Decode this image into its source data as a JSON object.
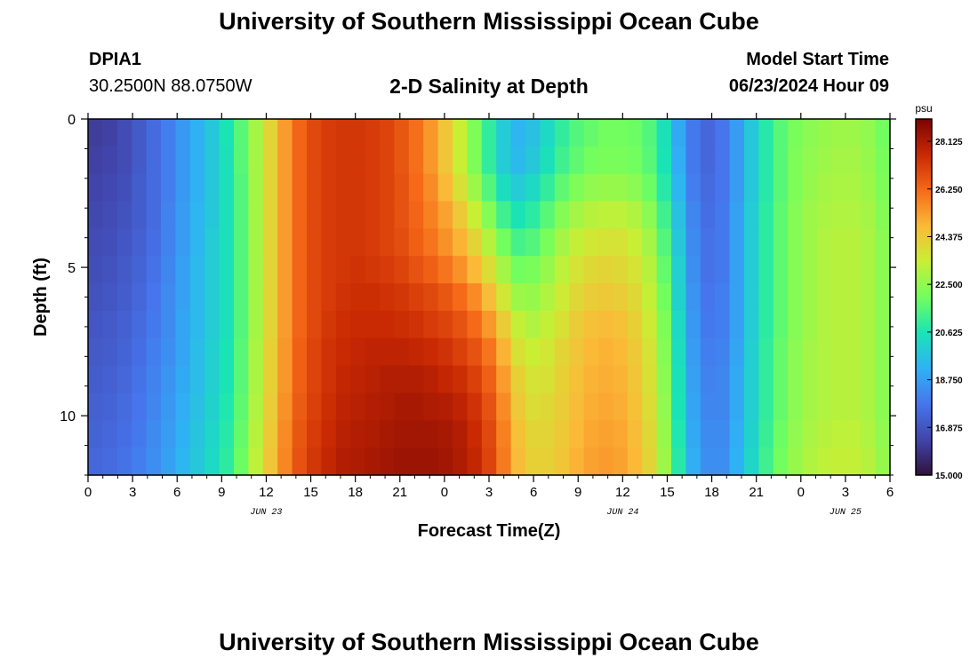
{
  "header": {
    "title": "University of Southern Mississippi Ocean Cube",
    "station_id": "DPIA1",
    "station_coords": "30.2500N  88.0750W",
    "plot_title": "2-D Salinity at Depth",
    "model_start_label": "Model Start Time",
    "model_start_value": "06/23/2024 Hour 09"
  },
  "footer": {
    "title": "University of Southern Mississippi Ocean Cube"
  },
  "chart_data": {
    "type": "heatmap",
    "title": "2-D Salinity at Depth",
    "xlabel": "Forecast Time(Z)",
    "ylabel": "Depth (ft)",
    "x_ticks": [
      0,
      3,
      6,
      9,
      12,
      15,
      18,
      21,
      24,
      27,
      30,
      33,
      36,
      39,
      42,
      45,
      48,
      51,
      54
    ],
    "x_tick_labels": [
      "0",
      "3",
      "6",
      "9",
      "12",
      "15",
      "18",
      "21",
      "0",
      "3",
      "6",
      "9",
      "12",
      "15",
      "18",
      "21",
      "0",
      "3",
      "6"
    ],
    "date_labels": [
      {
        "text": "JUN 23",
        "x": 12
      },
      {
        "text": "JUN 24",
        "x": 36
      },
      {
        "text": "JUN 25",
        "x": 51
      }
    ],
    "xlim": [
      0,
      54
    ],
    "ylim": [
      0,
      12
    ],
    "y_ticks": [
      0,
      5,
      10
    ],
    "y_tick_labels": [
      "0",
      "5",
      "10"
    ],
    "colorbar": {
      "unit": "psu",
      "min": 15.0,
      "max": 29.0,
      "tick_values": [
        15.0,
        16.875,
        18.75,
        20.625,
        22.5,
        24.375,
        26.25,
        28.125
      ],
      "tick_labels": [
        "15.000",
        "16.875",
        "18.750",
        "20.625",
        "22.500",
        "24.375",
        "26.250",
        "28.125"
      ]
    },
    "colors": {
      "stops": [
        "#30123b",
        "#4145ab",
        "#4675ed",
        "#2fb2f4",
        "#1ae4b6",
        "#72fe5e",
        "#c9ef34",
        "#fbb938",
        "#f56918",
        "#c92903",
        "#7a0403"
      ]
    },
    "x_values": [
      0,
      1,
      2,
      3,
      4,
      5,
      6,
      7,
      8,
      9,
      10,
      11,
      12,
      13,
      14,
      15,
      16,
      17,
      18,
      19,
      20,
      21,
      22,
      23,
      24,
      25,
      26,
      27,
      28,
      29,
      30,
      31,
      32,
      33,
      34,
      35,
      36,
      37,
      38,
      39,
      40,
      41,
      42,
      43,
      44,
      45,
      46,
      47,
      48,
      49,
      50,
      51,
      52,
      53,
      54
    ],
    "depth_values": [
      0,
      1,
      2,
      3,
      4,
      5,
      6,
      7,
      8,
      9,
      10,
      11,
      12
    ],
    "salinity_rows": [
      [
        16.2,
        16.3,
        16.6,
        17,
        17.5,
        18,
        18.6,
        19.2,
        19.8,
        20.6,
        21.6,
        22.8,
        24.1,
        25.3,
        26.3,
        26.9,
        27.2,
        27.3,
        27.3,
        27.2,
        27,
        26.6,
        26.1,
        25.4,
        24.5,
        23.4,
        22.2,
        21,
        19.9,
        19.3,
        19.6,
        20.3,
        21,
        21.5,
        21.8,
        22,
        22,
        21.9,
        21.5,
        20.5,
        19,
        17.9,
        17.4,
        17.8,
        18.7,
        19.8,
        20.8,
        21.6,
        22.1,
        22.4,
        22.6,
        22.7,
        22.7,
        22.5,
        22
      ],
      [
        16.3,
        16.4,
        16.6,
        17,
        17.5,
        18,
        18.6,
        19.2,
        19.8,
        20.5,
        21.6,
        22.8,
        24.1,
        25.3,
        26.3,
        26.9,
        27.2,
        27.3,
        27.3,
        27.2,
        27,
        26.6,
        26.1,
        25.4,
        24.5,
        23.4,
        22.2,
        21,
        19.9,
        19.4,
        19.8,
        20.5,
        21.2,
        21.7,
        22,
        22.1,
        22.1,
        22,
        21.6,
        20.6,
        19.1,
        17.9,
        17.4,
        17.8,
        18.7,
        19.8,
        20.8,
        21.6,
        22.2,
        22.5,
        22.7,
        22.8,
        22.8,
        22.6,
        22.1
      ],
      [
        16.4,
        16.5,
        16.7,
        17.1,
        17.5,
        18,
        18.6,
        19.2,
        19.8,
        20.5,
        21.5,
        22.8,
        24.1,
        25.3,
        26.3,
        26.9,
        27.2,
        27.3,
        27.3,
        27.2,
        27,
        26.7,
        26.2,
        25.6,
        24.8,
        23.8,
        22.7,
        21.5,
        20.4,
        19.9,
        20.3,
        21,
        21.7,
        22.2,
        22.5,
        22.6,
        22.6,
        22.4,
        21.9,
        20.8,
        19.3,
        18,
        17.5,
        17.8,
        18.7,
        19.8,
        20.8,
        21.6,
        22.2,
        22.6,
        22.8,
        22.9,
        22.9,
        22.7,
        22.2
      ],
      [
        16.5,
        16.6,
        16.8,
        17.1,
        17.5,
        18.1,
        18.7,
        19.3,
        19.8,
        20.5,
        21.5,
        22.8,
        24.1,
        25.3,
        26.3,
        26.9,
        27.2,
        27.3,
        27.3,
        27.2,
        27,
        26.7,
        26.3,
        25.8,
        25.2,
        24.4,
        23.4,
        22.3,
        21.2,
        20.6,
        20.9,
        21.6,
        22.3,
        22.8,
        23.1,
        23.2,
        23.2,
        23,
        22.4,
        21.2,
        19.6,
        18.2,
        17.6,
        17.9,
        18.8,
        19.9,
        20.9,
        21.7,
        22.3,
        22.7,
        22.9,
        23,
        23,
        22.8,
        22.3
      ],
      [
        16.6,
        16.7,
        16.9,
        17.2,
        17.6,
        18.1,
        18.7,
        19.3,
        19.9,
        20.5,
        21.5,
        22.8,
        24.1,
        25.3,
        26.3,
        26.9,
        27.2,
        27.3,
        27.3,
        27.2,
        27,
        26.8,
        26.4,
        26,
        25.5,
        24.9,
        24.1,
        23.1,
        22,
        21.3,
        21.5,
        22.1,
        22.8,
        23.3,
        23.6,
        23.7,
        23.7,
        23.4,
        22.8,
        21.5,
        19.8,
        18.3,
        17.7,
        17.9,
        18.8,
        19.9,
        20.9,
        21.7,
        22.3,
        22.7,
        23,
        23.1,
        23.1,
        22.9,
        22.4
      ],
      [
        16.7,
        16.8,
        17,
        17.3,
        17.7,
        18.2,
        18.8,
        19.4,
        19.9,
        20.5,
        21.5,
        22.8,
        24.1,
        25.3,
        26.3,
        26.9,
        27.2,
        27.3,
        27.4,
        27.3,
        27.2,
        27,
        26.7,
        26.4,
        26,
        25.5,
        24.8,
        23.9,
        22.8,
        22,
        22.1,
        22.6,
        23.2,
        23.7,
        24,
        24.1,
        24,
        23.7,
        23.1,
        21.8,
        20,
        18.4,
        17.7,
        17.9,
        18.8,
        19.9,
        20.9,
        21.7,
        22.3,
        22.7,
        23,
        23.1,
        23.1,
        22.9,
        22.4
      ],
      [
        16.8,
        16.9,
        17.1,
        17.4,
        17.8,
        18.3,
        18.8,
        19.4,
        19.9,
        20.5,
        21.5,
        22.8,
        24.1,
        25.3,
        26.3,
        26.9,
        27.2,
        27.4,
        27.5,
        27.5,
        27.4,
        27.3,
        27.1,
        26.9,
        26.6,
        26.2,
        25.6,
        24.7,
        23.6,
        22.7,
        22.6,
        23,
        23.5,
        24,
        24.3,
        24.4,
        24.3,
        24,
        23.3,
        22,
        20.1,
        18.5,
        17.8,
        18,
        18.8,
        19.9,
        20.9,
        21.7,
        22.3,
        22.7,
        23,
        23.1,
        23.1,
        22.9,
        22.4
      ],
      [
        16.9,
        17,
        17.2,
        17.5,
        17.9,
        18.3,
        18.9,
        19.4,
        19.9,
        20.5,
        21.5,
        22.8,
        24.1,
        25.3,
        26.3,
        26.9,
        27.3,
        27.5,
        27.6,
        27.6,
        27.6,
        27.5,
        27.4,
        27.2,
        27,
        26.7,
        26.2,
        25.4,
        24.3,
        23.3,
        23,
        23.3,
        23.8,
        24.3,
        24.6,
        24.7,
        24.6,
        24.2,
        23.5,
        22.2,
        20.3,
        18.6,
        17.9,
        18,
        18.8,
        19.9,
        20.9,
        21.7,
        22.3,
        22.7,
        23,
        23.1,
        23.1,
        22.9,
        22.4
      ],
      [
        17,
        17.1,
        17.3,
        17.6,
        18,
        18.4,
        18.9,
        19.5,
        20,
        20.6,
        21.6,
        22.9,
        24.2,
        25.4,
        26.4,
        27,
        27.4,
        27.6,
        27.7,
        27.8,
        27.8,
        27.8,
        27.7,
        27.6,
        27.4,
        27.1,
        26.7,
        26,
        24.9,
        23.8,
        23.4,
        23.6,
        24.1,
        24.5,
        24.8,
        24.9,
        24.8,
        24.4,
        23.7,
        22.3,
        20.4,
        18.7,
        18,
        18.1,
        18.9,
        20,
        21,
        21.8,
        22.4,
        22.8,
        23,
        23.1,
        23.1,
        22.9,
        22.4
      ],
      [
        17.1,
        17.2,
        17.4,
        17.7,
        18.1,
        18.5,
        19,
        19.5,
        20,
        20.6,
        21.6,
        22.9,
        24.2,
        25.4,
        26.4,
        27,
        27.4,
        27.7,
        27.8,
        27.9,
        28,
        28,
        28,
        27.9,
        27.7,
        27.5,
        27.1,
        26.4,
        25.3,
        24.2,
        23.7,
        23.8,
        24.2,
        24.6,
        24.9,
        25,
        24.9,
        24.5,
        23.8,
        22.4,
        20.5,
        18.8,
        18.1,
        18.2,
        19,
        20,
        21,
        21.8,
        22.4,
        22.8,
        23,
        23.1,
        23.1,
        22.9,
        22.4
      ],
      [
        17.2,
        17.3,
        17.5,
        17.8,
        18.2,
        18.6,
        19.1,
        19.6,
        20.1,
        20.7,
        21.7,
        23,
        24.3,
        25.5,
        26.5,
        27.1,
        27.5,
        27.8,
        27.9,
        28,
        28.1,
        28.2,
        28.2,
        28.1,
        28,
        27.8,
        27.4,
        26.7,
        25.6,
        24.4,
        23.9,
        24,
        24.3,
        24.7,
        25,
        25.1,
        25,
        24.6,
        23.9,
        22.5,
        20.6,
        18.9,
        18.2,
        18.2,
        19,
        20,
        21,
        21.8,
        22.4,
        22.8,
        23,
        23.1,
        23.1,
        22.9,
        22.4
      ],
      [
        17.3,
        17.4,
        17.6,
        17.9,
        18.3,
        18.7,
        19.2,
        19.7,
        20.2,
        20.8,
        21.8,
        23.1,
        24.4,
        25.6,
        26.6,
        27.2,
        27.6,
        27.9,
        28,
        28.1,
        28.2,
        28.3,
        28.3,
        28.3,
        28.2,
        28,
        27.6,
        26.9,
        25.8,
        24.6,
        24.1,
        24.1,
        24.4,
        24.8,
        25.1,
        25.2,
        25.1,
        24.7,
        24,
        22.6,
        20.7,
        19,
        18.3,
        18.3,
        19.1,
        20.1,
        21.1,
        21.9,
        22.5,
        22.9,
        23.1,
        23.2,
        23.2,
        23,
        22.5
      ],
      [
        17.4,
        17.5,
        17.7,
        18,
        18.4,
        18.8,
        19.3,
        19.8,
        20.3,
        20.9,
        21.9,
        23.2,
        24.5,
        25.7,
        26.7,
        27.3,
        27.7,
        28,
        28.1,
        28.2,
        28.3,
        28.4,
        28.4,
        28.4,
        28.3,
        28.1,
        27.7,
        27,
        25.9,
        24.7,
        24.2,
        24.2,
        24.5,
        24.9,
        25.2,
        25.3,
        25.2,
        24.8,
        24.1,
        22.7,
        20.8,
        19.1,
        18.4,
        18.4,
        19.2,
        20.2,
        21.2,
        22,
        22.6,
        23,
        23.2,
        23.3,
        23.3,
        23.1,
        22.6
      ]
    ]
  }
}
